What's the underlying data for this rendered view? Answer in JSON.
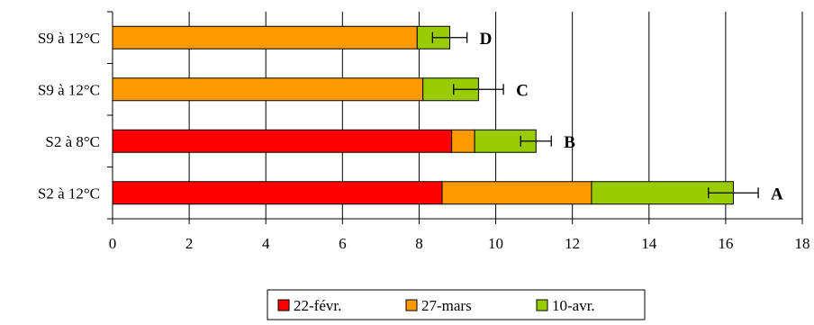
{
  "chart_data": {
    "type": "bar",
    "orientation": "horizontal",
    "stacked": true,
    "categories": [
      "S2 à 12°C",
      "S2 à 8°C",
      "S9 à 12°C",
      "S9 à 12°C"
    ],
    "series": [
      {
        "name": "22-févr.",
        "color": "#ff0000",
        "values": [
          8.6,
          8.85,
          0,
          0
        ]
      },
      {
        "name": "27-mars",
        "color": "#ff9900",
        "values": [
          3.9,
          0.6,
          8.1,
          7.95
        ]
      },
      {
        "name": "10-avr.",
        "color": "#99cc00",
        "values": [
          3.7,
          1.6,
          1.45,
          0.85
        ]
      }
    ],
    "error_bars": [
      0.65,
      0.4,
      0.65,
      0.45
    ],
    "letters": [
      "A",
      "B",
      "C",
      "D"
    ],
    "xlim": [
      0,
      18
    ],
    "xticks": [
      "0",
      "2",
      "4",
      "6",
      "8",
      "10",
      "12",
      "14",
      "16",
      "18"
    ],
    "grid": "vertical",
    "legend_position": "bottom",
    "xlabel": "",
    "ylabel": "",
    "title": ""
  }
}
